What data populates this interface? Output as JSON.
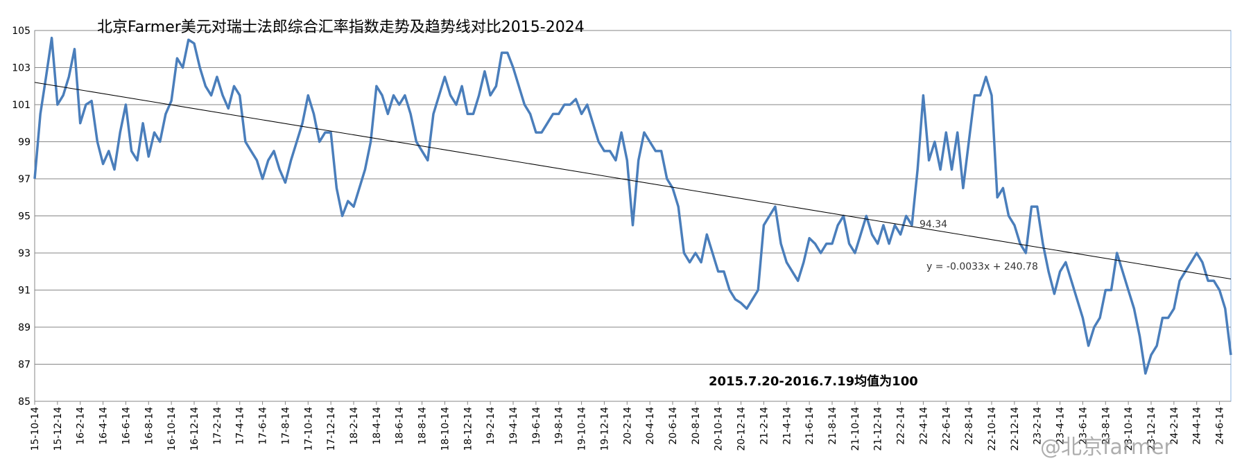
{
  "chart_data": {
    "type": "line",
    "title": "北京Farmer美元对瑞士法郎综合汇率指数走势及趋势线对比2015-2024",
    "annotations": [
      "94.34",
      "y = -0.0033x + 240.78",
      "2015.7.20-2016.7.19均值为100",
      "@北京farmer"
    ],
    "categories": [
      "15-10-14",
      null,
      null,
      null,
      "15-12-14",
      null,
      null,
      null,
      "16-2-14",
      null,
      null,
      null,
      "16-4-14",
      null,
      null,
      null,
      "16-6-14",
      null,
      null,
      null,
      "16-8-14",
      null,
      null,
      null,
      "16-10-14",
      null,
      null,
      null,
      "16-12-14",
      null,
      null,
      null,
      "17-2-14",
      null,
      null,
      null,
      "17-4-14",
      null,
      null,
      null,
      "17-6-14",
      null,
      null,
      null,
      "17-8-14",
      null,
      null,
      null,
      "17-10-14",
      null,
      null,
      null,
      "17-12-14",
      null,
      null,
      null,
      "18-2-14",
      null,
      null,
      null,
      "18-4-14",
      null,
      null,
      null,
      "18-6-14",
      null,
      null,
      null,
      "18-8-14",
      null,
      null,
      null,
      "18-10-14",
      null,
      null,
      null,
      "18-12-14",
      null,
      null,
      null,
      "19-2-14",
      null,
      null,
      null,
      "19-4-14",
      null,
      null,
      null,
      "19-6-14",
      null,
      null,
      null,
      "19-8-14",
      null,
      null,
      null,
      "19-10-14",
      null,
      null,
      null,
      "19-12-14",
      null,
      null,
      null,
      "20-2-14",
      null,
      null,
      null,
      "20-4-14",
      null,
      null,
      null,
      "20-6-14",
      null,
      null,
      null,
      "20-8-14",
      null,
      null,
      null,
      "20-10-14",
      null,
      null,
      null,
      "20-12-14",
      null,
      null,
      null,
      "21-2-14",
      null,
      null,
      null,
      "21-4-14",
      null,
      null,
      null,
      "21-6-14",
      null,
      null,
      null,
      "21-8-14",
      null,
      null,
      null,
      "21-10-14",
      null,
      null,
      null,
      "21-12-14",
      null,
      null,
      null,
      "22-2-14",
      null,
      null,
      null,
      "22-4-14",
      null,
      null,
      null,
      "22-6-14",
      null,
      null,
      null,
      "22-8-14",
      null,
      null,
      null,
      "22-10-14",
      null,
      null,
      null,
      "22-12-14",
      null,
      null,
      null,
      "23-2-14",
      null,
      null,
      null,
      "23-4-14",
      null,
      null,
      null,
      "23-6-14",
      null,
      null,
      null,
      "23-8-14",
      null,
      null,
      null,
      "23-10-14",
      null,
      null,
      null,
      "23-12-14",
      null,
      null,
      null,
      "24-2-14",
      null,
      null,
      null,
      "24-4-14",
      null,
      null,
      null,
      "24-6-14",
      null,
      null
    ],
    "series": [
      {
        "color": "#4a7ebb",
        "values": [
          97.0,
          100.5,
          102.5,
          104.6,
          101.0,
          101.5,
          102.5,
          104.0,
          100.0,
          101.0,
          101.2,
          99.0,
          97.8,
          98.5,
          97.5,
          99.5,
          101.0,
          98.5,
          98.0,
          100.0,
          98.2,
          99.5,
          99.0,
          100.5,
          101.2,
          103.5,
          103.0,
          104.5,
          104.3,
          103.0,
          102.0,
          101.5,
          102.5,
          101.5,
          100.8,
          102.0,
          101.5,
          99.0,
          98.5,
          98.0,
          97.0,
          98.0,
          98.5,
          97.5,
          96.8,
          98.0,
          99.0,
          100.0,
          101.5,
          100.5,
          99.0,
          99.5,
          99.5,
          96.5,
          95.0,
          95.8,
          95.5,
          96.5,
          97.5,
          99.0,
          102.0,
          101.5,
          100.5,
          101.5,
          101.0,
          101.5,
          100.5,
          99.0,
          98.5,
          98.0,
          100.5,
          101.5,
          102.5,
          101.5,
          101.0,
          102.0,
          100.5,
          100.5,
          101.5,
          102.8,
          101.5,
          102.0,
          103.8,
          103.8,
          103.0,
          102.0,
          101.0,
          100.5,
          99.5,
          99.5,
          100.0,
          100.5,
          100.5,
          101.0,
          101.0,
          101.3,
          100.5,
          101.0,
          100.0,
          99.0,
          98.5,
          98.5,
          98.0,
          99.5,
          98.0,
          94.5,
          98.0,
          99.5,
          99.0,
          98.5,
          98.5,
          97.0,
          96.5,
          95.5,
          93.0,
          92.5,
          93.0,
          92.5,
          94.0,
          93.0,
          92.0,
          92.0,
          91.0,
          90.5,
          90.3,
          90.0,
          90.5,
          91.0,
          94.5,
          95.0,
          95.5,
          93.5,
          92.5,
          92.0,
          91.5,
          92.5,
          93.8,
          93.5,
          93.0,
          93.5,
          93.5,
          94.5,
          95.0,
          93.5,
          93.0,
          94.0,
          95.0,
          94.0,
          93.5,
          94.5,
          93.5,
          94.5,
          94.0,
          95.0,
          94.5,
          97.5,
          101.5,
          98.0,
          99.0,
          97.5,
          99.5,
          97.5,
          99.5,
          96.5,
          99.0,
          101.5,
          101.5,
          102.5,
          101.5,
          96.0,
          96.5,
          95.0,
          94.5,
          93.5,
          93.0,
          95.5,
          95.5,
          93.5,
          92.0,
          90.8,
          92.0,
          92.5,
          91.5,
          90.5,
          89.5,
          88.0,
          89.0,
          89.5,
          91.0,
          91.0,
          93.0,
          92.0,
          91.0,
          90.0,
          88.5,
          86.5,
          87.5,
          88.0,
          89.5,
          89.5,
          90.0,
          91.5,
          92.0,
          92.5,
          93.0,
          92.5,
          91.5,
          91.5,
          91.0,
          90.0,
          87.5
        ]
      }
    ],
    "trendline": {
      "color": "#000000",
      "values": [
        102.2,
        91.6
      ]
    },
    "ylim": [
      85,
      105
    ],
    "yticks": [
      85,
      87,
      89,
      91,
      93,
      95,
      97,
      99,
      101,
      103,
      105
    ],
    "grid": true
  }
}
